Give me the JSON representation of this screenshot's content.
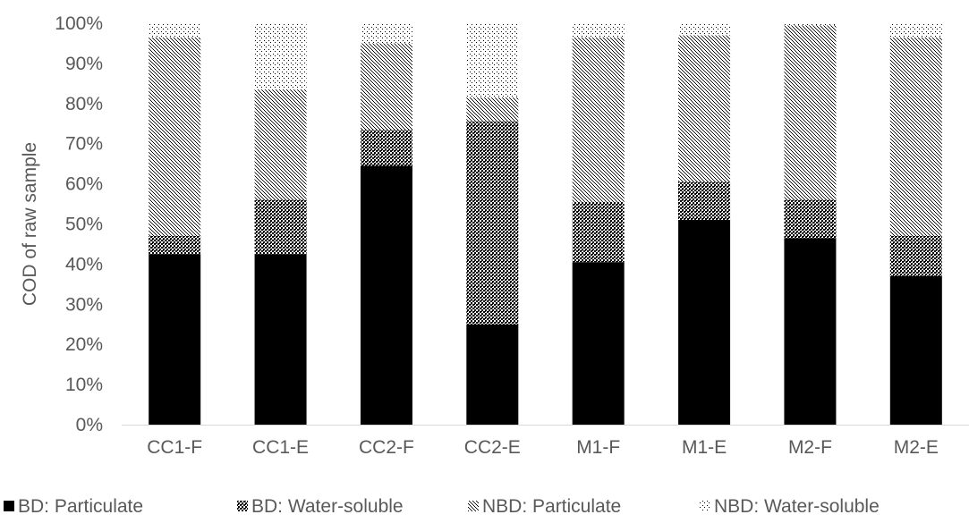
{
  "chart_data": {
    "type": "bar",
    "stacked": true,
    "percent": true,
    "categories": [
      "CC1-F",
      "CC1-E",
      "CC2-F",
      "CC2-E",
      "M1-F",
      "M1-E",
      "M2-F",
      "M2-E"
    ],
    "series": [
      {
        "name": "BD: Particulate",
        "values": [
          42.5,
          42.5,
          64.5,
          25,
          40.5,
          51,
          46.5,
          37
        ],
        "color": "#000000",
        "pattern": "solid"
      },
      {
        "name": "BD: Water-soluble",
        "values": [
          4.5,
          13.5,
          9,
          50.5,
          15,
          9.5,
          9.5,
          10
        ],
        "color": "#000000",
        "pattern": "dense-dots"
      },
      {
        "name": "NBD: Particulate",
        "values": [
          49.5,
          27.5,
          21.5,
          6,
          41,
          36.5,
          43.5,
          49.5
        ],
        "color": "#000000",
        "pattern": "medium-dots"
      },
      {
        "name": "NBD: Water-soluble",
        "values": [
          3.5,
          16.5,
          5,
          18.5,
          3.5,
          3,
          0.5,
          3.5
        ],
        "color": "#000000",
        "pattern": "sparse-dots"
      }
    ],
    "ylabel": "COD of raw sample",
    "xlabel": "",
    "ylim": [
      0,
      100
    ],
    "yticks": [
      "0%",
      "10%",
      "20%",
      "30%",
      "40%",
      "50%",
      "60%",
      "70%",
      "80%",
      "90%",
      "100%"
    ],
    "grid": false,
    "legend": "bottom"
  }
}
